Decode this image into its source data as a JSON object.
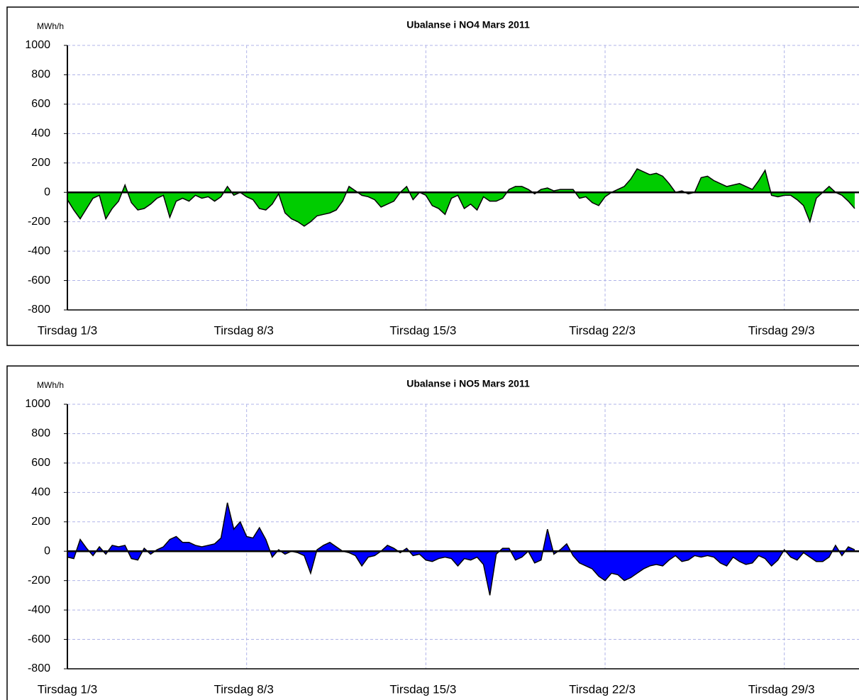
{
  "chart_data": [
    {
      "type": "area",
      "title": "Ubalanse i NO4 Mars 2011",
      "y_label": "MWh/h",
      "x": [
        1,
        1.25,
        1.5,
        1.75,
        2,
        2.25,
        2.5,
        2.75,
        3,
        3.25,
        3.5,
        3.75,
        4,
        4.25,
        4.5,
        4.75,
        5,
        5.25,
        5.5,
        5.75,
        6,
        6.25,
        6.5,
        6.75,
        7,
        7.25,
        7.5,
        7.75,
        8,
        8.25,
        8.5,
        8.75,
        9,
        9.25,
        9.5,
        9.75,
        10,
        10.25,
        10.5,
        10.75,
        11,
        11.25,
        11.5,
        11.75,
        12,
        12.25,
        12.5,
        12.75,
        13,
        13.25,
        13.5,
        13.75,
        14,
        14.25,
        14.5,
        14.75,
        15,
        15.25,
        15.5,
        15.75,
        16,
        16.25,
        16.5,
        16.75,
        17,
        17.25,
        17.5,
        17.75,
        18,
        18.25,
        18.5,
        18.75,
        19,
        19.25,
        19.5,
        19.75,
        20,
        20.25,
        20.5,
        20.75,
        21,
        21.25,
        21.5,
        21.75,
        22,
        22.25,
        22.5,
        22.75,
        23,
        23.25,
        23.5,
        23.75,
        24,
        24.25,
        24.5,
        24.75,
        25,
        25.25,
        25.5,
        25.75,
        26,
        26.25,
        26.5,
        26.75,
        27,
        27.25,
        27.5,
        27.75,
        28,
        28.25,
        28.5,
        28.75,
        29,
        29.25,
        29.5,
        29.75,
        30,
        30.25,
        30.5,
        30.75,
        31,
        31.25,
        31.5,
        31.75
      ],
      "series": [
        {
          "name": "NO4",
          "color": "#00cc00",
          "values": [
            -50,
            -120,
            -180,
            -110,
            -40,
            -20,
            -180,
            -110,
            -60,
            50,
            -70,
            -120,
            -110,
            -80,
            -40,
            -20,
            -170,
            -60,
            -40,
            -60,
            -20,
            -40,
            -30,
            -60,
            -30,
            40,
            -20,
            0,
            -30,
            -50,
            -110,
            -120,
            -80,
            -10,
            -140,
            -180,
            -200,
            -230,
            -200,
            -160,
            -150,
            -140,
            -120,
            -60,
            40,
            10,
            -20,
            -30,
            -50,
            -100,
            -80,
            -60,
            0,
            40,
            -50,
            0,
            -20,
            -90,
            -110,
            -150,
            -40,
            -20,
            -110,
            -80,
            -120,
            -30,
            -60,
            -60,
            -40,
            20,
            40,
            40,
            20,
            -10,
            20,
            30,
            10,
            20,
            20,
            20,
            -40,
            -30,
            -70,
            -90,
            -30,
            0,
            20,
            40,
            90,
            160,
            140,
            120,
            130,
            110,
            60,
            0,
            10,
            -10,
            0,
            100,
            110,
            80,
            60,
            40,
            50,
            60,
            40,
            20,
            80,
            150,
            -20,
            -30,
            -20,
            -20,
            -50,
            -90,
            -200,
            -40,
            0,
            40,
            0,
            -20,
            -60,
            -110
          ]
        }
      ],
      "xlim": [
        1,
        32
      ],
      "ylim": [
        -800,
        1000
      ],
      "xticks": [
        {
          "value": 1,
          "label": "Tirsdag 1/3"
        },
        {
          "value": 8,
          "label": "Tirsdag 8/3"
        },
        {
          "value": 15,
          "label": "Tirsdag 15/3"
        },
        {
          "value": 22,
          "label": "Tirsdag 22/3"
        },
        {
          "value": 29,
          "label": "Tirsdag 29/3"
        }
      ],
      "yticks": [
        -800,
        -600,
        -400,
        -200,
        0,
        200,
        400,
        600,
        800,
        1000
      ],
      "grid": true
    },
    {
      "type": "area",
      "title": "Ubalanse i NO5 Mars 2011",
      "y_label": "MWh/h",
      "x": [
        1,
        1.25,
        1.5,
        1.75,
        2,
        2.25,
        2.5,
        2.75,
        3,
        3.25,
        3.5,
        3.75,
        4,
        4.25,
        4.5,
        4.75,
        5,
        5.25,
        5.5,
        5.75,
        6,
        6.25,
        6.5,
        6.75,
        7,
        7.25,
        7.5,
        7.75,
        8,
        8.25,
        8.5,
        8.75,
        9,
        9.25,
        9.5,
        9.75,
        10,
        10.25,
        10.5,
        10.75,
        11,
        11.25,
        11.5,
        11.75,
        12,
        12.25,
        12.5,
        12.75,
        13,
        13.25,
        13.5,
        13.75,
        14,
        14.25,
        14.5,
        14.75,
        15,
        15.25,
        15.5,
        15.75,
        16,
        16.25,
        16.5,
        16.75,
        17,
        17.25,
        17.5,
        17.75,
        18,
        18.25,
        18.5,
        18.75,
        19,
        19.25,
        19.5,
        19.75,
        20,
        20.25,
        20.5,
        20.75,
        21,
        21.25,
        21.5,
        21.75,
        22,
        22.25,
        22.5,
        22.75,
        23,
        23.25,
        23.5,
        23.75,
        24,
        24.25,
        24.5,
        24.75,
        25,
        25.25,
        25.5,
        25.75,
        26,
        26.25,
        26.5,
        26.75,
        27,
        27.25,
        27.5,
        27.75,
        28,
        28.25,
        28.5,
        28.75,
        29,
        29.25,
        29.5,
        29.75,
        30,
        30.25,
        30.5,
        30.75,
        31,
        31.25,
        31.5,
        31.75
      ],
      "series": [
        {
          "name": "NO5",
          "color": "#0000ff",
          "values": [
            -40,
            -50,
            80,
            20,
            -30,
            30,
            -20,
            40,
            30,
            40,
            -50,
            -60,
            20,
            -20,
            10,
            30,
            80,
            100,
            60,
            60,
            40,
            30,
            40,
            50,
            90,
            330,
            150,
            200,
            100,
            90,
            160,
            80,
            -40,
            10,
            -20,
            0,
            -10,
            -30,
            -150,
            10,
            40,
            60,
            30,
            0,
            -10,
            -30,
            -100,
            -40,
            -30,
            0,
            40,
            20,
            -10,
            20,
            -30,
            -20,
            -60,
            -70,
            -50,
            -40,
            -50,
            -100,
            -50,
            -60,
            -40,
            -90,
            -300,
            -20,
            20,
            20,
            -60,
            -40,
            0,
            -80,
            -60,
            150,
            -20,
            10,
            50,
            -30,
            -80,
            -100,
            -120,
            -170,
            -200,
            -150,
            -160,
            -200,
            -180,
            -150,
            -120,
            -100,
            -90,
            -100,
            -60,
            -30,
            -70,
            -60,
            -30,
            -40,
            -30,
            -40,
            -80,
            -100,
            -40,
            -70,
            -90,
            -80,
            -30,
            -50,
            -100,
            -60,
            10,
            -40,
            -60,
            -10,
            -40,
            -70,
            -70,
            -40,
            40,
            -30,
            30,
            10
          ]
        }
      ],
      "xlim": [
        1,
        32
      ],
      "ylim": [
        -800,
        1000
      ],
      "xticks": [
        {
          "value": 1,
          "label": "Tirsdag 1/3"
        },
        {
          "value": 8,
          "label": "Tirsdag 8/3"
        },
        {
          "value": 15,
          "label": "Tirsdag 15/3"
        },
        {
          "value": 22,
          "label": "Tirsdag 22/3"
        },
        {
          "value": 29,
          "label": "Tirsdag 29/3"
        }
      ],
      "yticks": [
        -800,
        -600,
        -400,
        -200,
        0,
        200,
        400,
        600,
        800,
        1000
      ],
      "grid": true
    }
  ]
}
